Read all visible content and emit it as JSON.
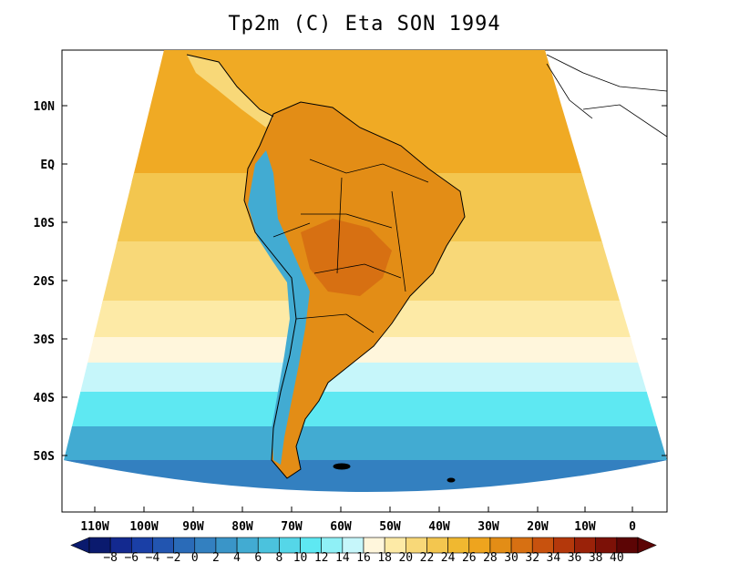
{
  "title": "Tp2m (C) Eta SON 1994",
  "y_labels": [
    "10N",
    "EQ",
    "10S",
    "20S",
    "30S",
    "40S",
    "50S"
  ],
  "x_labels": [
    "110W",
    "100W",
    "90W",
    "80W",
    "70W",
    "60W",
    "50W",
    "40W",
    "30W",
    "20W",
    "10W",
    "0"
  ],
  "colorbar": {
    "labels": [
      "−8",
      "−6",
      "−4",
      "−2",
      "0",
      "2",
      "4",
      "6",
      "8",
      "10",
      "12",
      "14",
      "16",
      "18",
      "20",
      "22",
      "24",
      "26",
      "28",
      "30",
      "32",
      "34",
      "36",
      "38",
      "40"
    ],
    "colors": [
      "#0a1a6e",
      "#13298f",
      "#1a3fa6",
      "#2255b0",
      "#2a6bb8",
      "#3380c0",
      "#3a95c8",
      "#42abd2",
      "#4bc2dd",
      "#55d6e8",
      "#5ee8f2",
      "#8ff0f6",
      "#c6f6fa",
      "#fff6dc",
      "#fdeaa6",
      "#f8d878",
      "#f3c64f",
      "#f0b830",
      "#eea41e",
      "#e38d16",
      "#d77012",
      "#c8520e",
      "#b4380b",
      "#9a2209",
      "#7c1107",
      "#5c0505"
    ]
  },
  "map_colors": {
    "ocean_north": "#f0aa24",
    "ocean_warm": "#f3c64f",
    "ocean_mild": "#f8d878",
    "ocean_pale": "#fdeaa6",
    "ocean_cream": "#fff6dc",
    "ocean_lightblue": "#c6f6fa",
    "ocean_cyan": "#5ee8f2",
    "ocean_teal": "#42abd2",
    "ocean_blue": "#3380c0",
    "land_hot": "#d77012",
    "land_warm": "#e38d16",
    "andes": "#42abd2"
  }
}
